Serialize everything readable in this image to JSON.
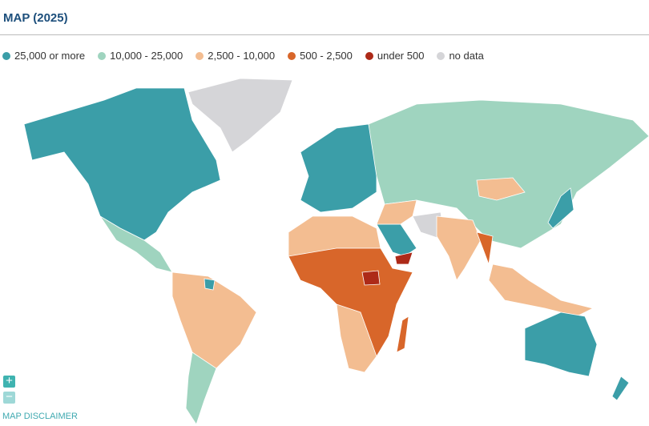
{
  "header": {
    "title": "MAP (2025)"
  },
  "legend": [
    {
      "label": "25,000 or more",
      "color": "#3b9ea8"
    },
    {
      "label": "10,000 - 25,000",
      "color": "#9fd4bf"
    },
    {
      "label": "2,500 - 10,000",
      "color": "#f3bd91"
    },
    {
      "label": "500 - 2,500",
      "color": "#d8662a"
    },
    {
      "label": "under 500",
      "color": "#ad2a18"
    },
    {
      "label": "no data",
      "color": "#d5d5d8"
    }
  ],
  "controls": {
    "zoom_in": "+",
    "zoom_out": "−"
  },
  "footer": {
    "disclaimer": "MAP DISCLAIMER"
  }
}
